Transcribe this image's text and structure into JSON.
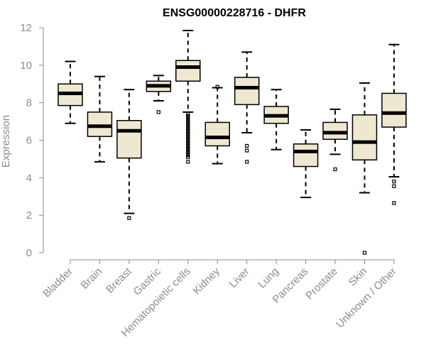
{
  "chart_data": {
    "type": "box",
    "title": "ENSG00000228716 - DHFR",
    "xlabel": "",
    "ylabel": "Expression",
    "ylim": [
      0,
      12
    ],
    "yticks": [
      0,
      2,
      4,
      6,
      8,
      10,
      12
    ],
    "grid": false,
    "box_fill": "#efe8d0",
    "categories": [
      "Bladder",
      "Brain",
      "Breast",
      "Gastric",
      "Hematopoietic cells",
      "Kidney",
      "Liver",
      "Lung",
      "Pancreas",
      "Prostate",
      "Skin",
      "Unknown / Other"
    ],
    "boxes": [
      {
        "category": "Bladder",
        "whisker_low": 6.9,
        "q1": 7.85,
        "median": 8.5,
        "q3": 9.0,
        "whisker_high": 10.2,
        "outliers": []
      },
      {
        "category": "Brain",
        "whisker_low": 4.85,
        "q1": 6.2,
        "median": 6.75,
        "q3": 7.5,
        "whisker_high": 9.4,
        "outliers": []
      },
      {
        "category": "Breast",
        "whisker_low": 2.1,
        "q1": 5.05,
        "median": 6.5,
        "q3": 7.05,
        "whisker_high": 8.7,
        "outliers": [
          1.85
        ]
      },
      {
        "category": "Gastric",
        "whisker_low": 8.1,
        "q1": 8.6,
        "median": 8.9,
        "q3": 9.15,
        "whisker_high": 9.45,
        "outliers": [
          7.5
        ]
      },
      {
        "category": "Hematopoietic cells",
        "whisker_low": 7.5,
        "q1": 9.15,
        "median": 9.9,
        "q3": 10.25,
        "whisker_high": 11.85,
        "outliers": [
          7.4,
          7.3,
          7.2,
          7.1,
          7.0,
          6.9,
          6.8,
          6.7,
          6.6,
          6.5,
          6.4,
          6.3,
          6.2,
          6.1,
          6.0,
          5.9,
          5.8,
          5.7,
          5.6,
          5.5,
          5.4,
          5.3,
          5.2,
          5.1,
          4.85
        ]
      },
      {
        "category": "Kidney",
        "whisker_low": 4.75,
        "q1": 5.7,
        "median": 6.15,
        "q3": 6.95,
        "whisker_high": 8.8,
        "outliers": [
          8.85
        ]
      },
      {
        "category": "Liver",
        "whisker_low": 6.4,
        "q1": 7.9,
        "median": 8.8,
        "q3": 9.35,
        "whisker_high": 10.7,
        "outliers": [
          5.7,
          5.45,
          4.85
        ]
      },
      {
        "category": "Lung",
        "whisker_low": 5.5,
        "q1": 6.9,
        "median": 7.3,
        "q3": 7.8,
        "whisker_high": 8.7,
        "outliers": []
      },
      {
        "category": "Pancreas",
        "whisker_low": 2.95,
        "q1": 4.6,
        "median": 5.4,
        "q3": 5.8,
        "whisker_high": 6.55,
        "outliers": []
      },
      {
        "category": "Prostate",
        "whisker_low": 5.25,
        "q1": 6.05,
        "median": 6.4,
        "q3": 6.95,
        "whisker_high": 7.65,
        "outliers": [
          4.45
        ]
      },
      {
        "category": "Skin",
        "whisker_low": 3.2,
        "q1": 4.95,
        "median": 5.9,
        "q3": 7.35,
        "whisker_high": 9.05,
        "outliers": [
          0.0
        ]
      },
      {
        "category": "Unknown / Other",
        "whisker_low": 4.05,
        "q1": 6.7,
        "median": 7.45,
        "q3": 8.5,
        "whisker_high": 11.1,
        "outliers": [
          3.8,
          3.55,
          2.65
        ]
      }
    ]
  }
}
